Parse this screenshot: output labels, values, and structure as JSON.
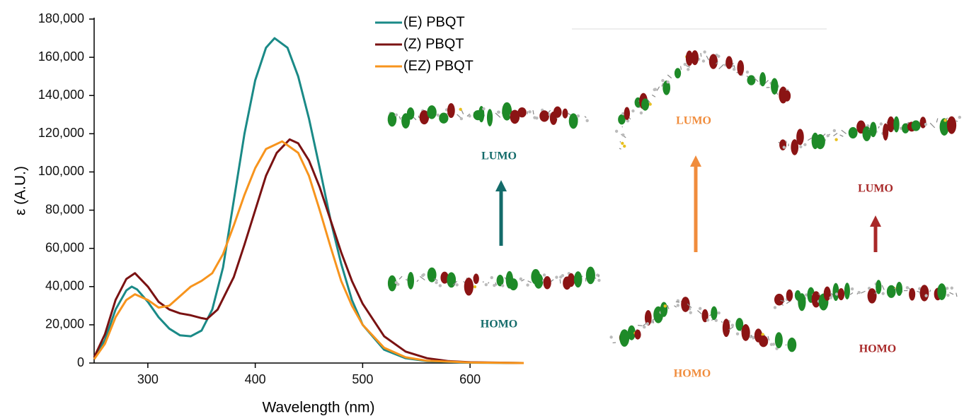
{
  "chart_data": {
    "type": "line",
    "x_label": "Wavelength (nm)",
    "y_label": "ε (A.U.)",
    "xlim": [
      250,
      650
    ],
    "xticks": [
      300,
      400,
      500,
      600
    ],
    "ylim": [
      0,
      180000
    ],
    "yticks": [
      0,
      {
        "value": 20000,
        "label": "20,000"
      },
      {
        "value": 40000,
        "label": "40,000"
      },
      {
        "value": 60000,
        "label": "60,000"
      },
      {
        "value": 80000,
        "label": "80,000"
      },
      {
        "value": 100000,
        "label": "100,000"
      },
      {
        "value": 120000,
        "label": "120,000"
      },
      {
        "value": 140000,
        "label": "140,000"
      },
      {
        "value": 160000,
        "label": "160,000"
      },
      {
        "value": 180000,
        "label": "180,000"
      }
    ],
    "legend": "top-right",
    "series": [
      {
        "name": "(E) PBQT",
        "color": "#1a8a87",
        "x": [
          250,
          260,
          270,
          280,
          285,
          290,
          300,
          310,
          320,
          330,
          340,
          350,
          360,
          370,
          380,
          390,
          400,
          410,
          418,
          430,
          440,
          450,
          460,
          470,
          480,
          490,
          500,
          520,
          540,
          560,
          600,
          650
        ],
        "values": [
          3000,
          12000,
          28000,
          38000,
          40000,
          38500,
          32000,
          24000,
          18000,
          14500,
          14000,
          17000,
          28000,
          50000,
          85000,
          120000,
          148000,
          165000,
          170000,
          165000,
          150000,
          128000,
          102000,
          75000,
          52000,
          33000,
          20000,
          7000,
          2500,
          1000,
          200,
          0
        ]
      },
      {
        "name": "(Z) PBQT",
        "color": "#7a1212",
        "x": [
          250,
          260,
          270,
          280,
          288,
          300,
          310,
          320,
          330,
          340,
          350,
          355,
          365,
          380,
          390,
          400,
          410,
          420,
          432,
          440,
          450,
          460,
          470,
          480,
          490,
          500,
          520,
          540,
          560,
          580,
          600,
          650
        ],
        "values": [
          3000,
          15000,
          33000,
          44000,
          47000,
          40000,
          32000,
          28000,
          26000,
          25000,
          23500,
          23000,
          28000,
          45000,
          62000,
          80000,
          98000,
          110000,
          117000,
          115000,
          106000,
          92000,
          75000,
          58000,
          43000,
          31000,
          14000,
          6000,
          2500,
          1000,
          400,
          0
        ]
      },
      {
        "name": "(EZ) PBQT",
        "color": "#f7941d",
        "x": [
          250,
          260,
          270,
          280,
          288,
          300,
          310,
          320,
          330,
          340,
          350,
          360,
          370,
          380,
          390,
          400,
          410,
          425,
          440,
          450,
          460,
          470,
          480,
          490,
          500,
          520,
          540,
          560,
          600,
          650
        ],
        "values": [
          2000,
          10000,
          24000,
          33000,
          36000,
          33000,
          29000,
          30000,
          35000,
          40000,
          43000,
          47000,
          57000,
          72000,
          88000,
          102000,
          112000,
          116000,
          110000,
          98000,
          80000,
          61000,
          43000,
          30000,
          20000,
          8000,
          3000,
          1200,
          300,
          0
        ]
      }
    ]
  },
  "orbital_labels": [
    "LUMO",
    "HOMO",
    "LUMO",
    "HOMO",
    "LUMO",
    "HOMO"
  ]
}
